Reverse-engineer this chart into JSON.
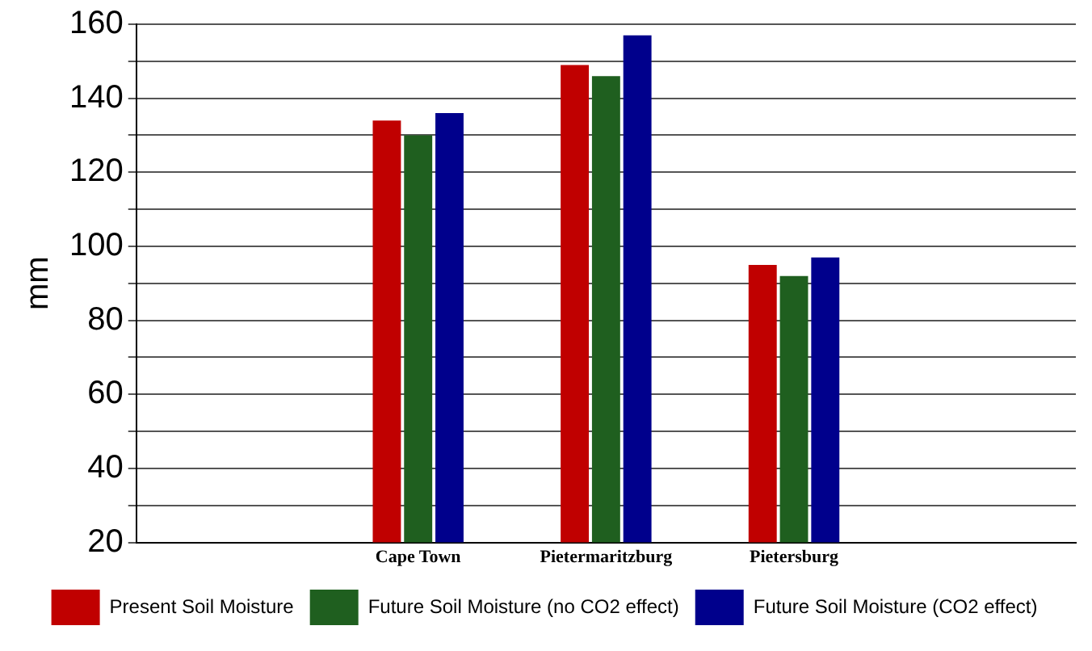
{
  "chart_data": {
    "type": "bar",
    "ylabel": "mm",
    "categories": [
      null,
      "Cape Town",
      "Pietermaritzburg",
      "Pietersburg",
      null
    ],
    "series": [
      {
        "name": "Present Soil Moisture",
        "color": "#c00000",
        "values": [
          null,
          134,
          149,
          95,
          null
        ]
      },
      {
        "name": "Future Soil Moisture (no CO2 effect)",
        "color": "#1f5f1f",
        "values": [
          null,
          130,
          146,
          92,
          null
        ]
      },
      {
        "name": "Future Soil Moisture (CO2 effect)",
        "color": "#00008c",
        "values": [
          null,
          136,
          157,
          97,
          null
        ]
      }
    ],
    "ylim": [
      20,
      160
    ],
    "yticks": [
      20,
      {
        "value": 30,
        "label": null
      },
      40,
      {
        "value": 50,
        "label": null
      },
      60,
      {
        "value": 70,
        "label": null
      },
      80,
      {
        "value": 90,
        "label": null
      },
      100,
      {
        "value": 110,
        "label": null
      },
      120,
      {
        "value": 130,
        "label": null
      },
      140,
      {
        "value": 150,
        "label": null
      },
      160
    ],
    "grid": "y",
    "legend": "bottom"
  }
}
